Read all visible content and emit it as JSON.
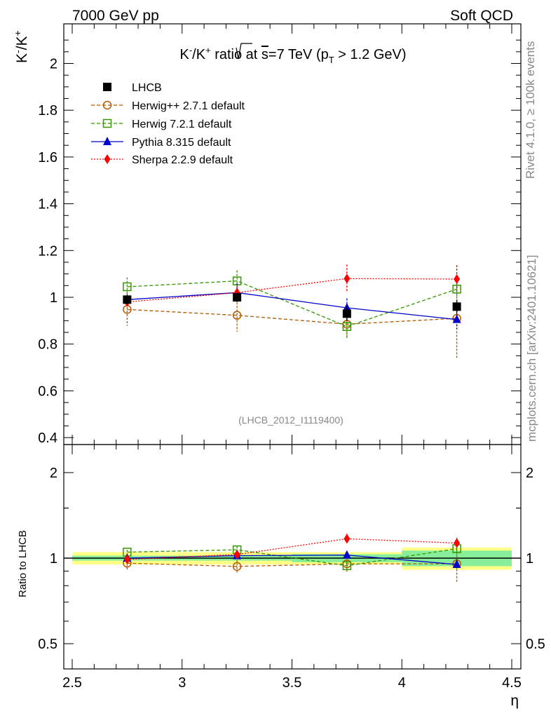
{
  "header": {
    "left": "7000 GeV pp",
    "right": "Soft QCD"
  },
  "side_text": {
    "rivet": "Rivet 4.1.0, ≥ 100k events",
    "mcplots": "mcplots.cern.ch [arXiv:2401.10621]"
  },
  "colors": {
    "lhcb": "#000000",
    "herwig_pp": "#b35900",
    "herwig7": "#339900",
    "pythia": "#0000cc",
    "sherpa": "#ff0000",
    "band_inner": "#88ee99",
    "band_outer": "#ffff88"
  },
  "chart_data": [
    {
      "type": "line",
      "title": "K⁻/K⁺ ratio at √s=7 TeV (p_T > 1.2 GeV)",
      "title_parts": {
        "a": "K",
        "b": "-",
        "c": "/K",
        "d": "+",
        "e": " ratio at ",
        "f": "s",
        "g": "=7 TeV (p",
        "h": "T",
        "i": " > 1.2 GeV)"
      },
      "ylabel_parts": {
        "a": "K",
        "b": "-",
        "c": "/K",
        "d": "+"
      },
      "xlabel": "η",
      "analysis_id": "(LHCB_2012_I1119400)",
      "xlim": [
        2.5,
        4.55
      ],
      "ylim": [
        0.38,
        2.17
      ],
      "yticks": [
        0.4,
        0.6,
        0.8,
        1,
        1.2,
        1.4,
        1.6,
        1.8,
        2
      ],
      "ytick_labels": [
        "0.4",
        "0.6",
        "0.8",
        "1",
        "1.2",
        "1.4",
        "1.6",
        "1.8",
        "2"
      ],
      "x": [
        2.75,
        3.25,
        3.75,
        4.25
      ],
      "data": {
        "name": "LHCB",
        "values": [
          0.99,
          1.0,
          0.93,
          0.96
        ],
        "errors": [
          0.02,
          0.02,
          0.03,
          0.03
        ],
        "xerr": [
          0.25,
          0.25,
          0.25,
          0.25
        ]
      },
      "series": [
        {
          "name": "Herwig++ 2.7.1 default",
          "key": "herwig_pp",
          "marker": "circle-open",
          "dash": "5,3",
          "values": [
            0.948,
            0.923,
            0.885,
            0.91
          ],
          "errors": [
            0.07,
            0.07,
            0.06,
            0.17
          ]
        },
        {
          "name": "Herwig 7.2.1 default",
          "key": "herwig7",
          "marker": "square-open",
          "dash": "5,3",
          "values": [
            1.045,
            1.07,
            0.875,
            1.035
          ],
          "errors": [
            0.04,
            0.045,
            0.05,
            0.04
          ]
        },
        {
          "name": "Pythia 8.315 default",
          "key": "pythia",
          "marker": "triangle",
          "dash": "",
          "values": [
            0.99,
            1.02,
            0.955,
            0.905
          ],
          "errors": [
            0.02,
            0.04,
            0.04,
            0.04
          ]
        },
        {
          "name": "Sherpa 2.2.9 default",
          "key": "sherpa",
          "marker": "diamond",
          "dash": "2,2",
          "values": [
            0.98,
            1.02,
            1.08,
            1.078
          ],
          "errors": [
            0.02,
            0.03,
            0.06,
            0.06
          ]
        }
      ]
    },
    {
      "type": "line",
      "ylabel": "Ratio to LHCB",
      "xlim": [
        2.5,
        4.55
      ],
      "ylim": [
        0.4,
        2.4
      ],
      "yscale": "log",
      "yticks": [
        0.5,
        1,
        2
      ],
      "ytick_labels": [
        "0.5",
        "1",
        "2"
      ],
      "xticks": [
        2.5,
        3,
        3.5,
        4,
        4.5
      ],
      "xtick_labels": [
        "2.5",
        "3",
        "3.5",
        "4",
        "4.5"
      ],
      "x": [
        2.75,
        3.25,
        3.75,
        4.25
      ],
      "band_inner": [
        0.02,
        0.02,
        0.032,
        0.063
      ],
      "band_outer": [
        0.05,
        0.05,
        0.05,
        0.09
      ],
      "series": [
        {
          "key": "herwig_pp",
          "values": [
            0.96,
            0.935,
            0.955,
            0.955
          ],
          "errors": [
            0.05,
            0.05,
            0.06,
            0.13
          ]
        },
        {
          "key": "herwig7",
          "values": [
            1.05,
            1.07,
            0.94,
            1.08
          ],
          "errors": [
            0.02,
            0.03,
            0.03,
            0.05
          ]
        },
        {
          "key": "pythia",
          "values": [
            1.0,
            1.02,
            1.025,
            0.95
          ],
          "errors": [
            0.02,
            0.02,
            0.03,
            0.04
          ]
        },
        {
          "key": "sherpa",
          "values": [
            0.99,
            1.03,
            1.17,
            1.13
          ],
          "errors": [
            0.02,
            0.02,
            0.05,
            0.05
          ]
        }
      ]
    }
  ]
}
